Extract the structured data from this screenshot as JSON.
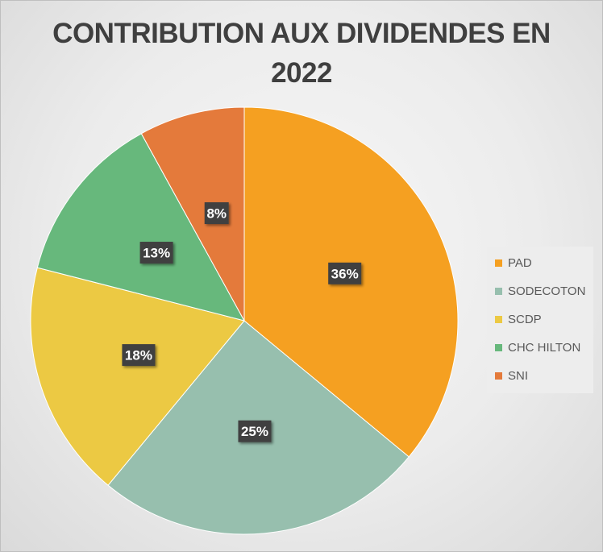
{
  "chart_data": {
    "type": "pie",
    "title": "CONTRIBUTION AUX DIVIDENDES EN 2022",
    "title_lines": [
      "CONTRIBUTION AUX DIVIDENDES EN",
      "2022"
    ],
    "categories": [
      "PAD",
      "SODECOTON",
      "SCDP",
      "CHC HILTON",
      "SNI"
    ],
    "values": [
      36,
      25,
      18,
      13,
      8
    ],
    "data_labels": [
      "36%",
      "25%",
      "18%",
      "13%",
      "8%"
    ],
    "colors": [
      "#F5A021",
      "#97BFAE",
      "#ECC943",
      "#67B87C",
      "#E47A3B"
    ],
    "start_angle_deg": 0,
    "direction": "clockwise",
    "legend_position": "right"
  }
}
